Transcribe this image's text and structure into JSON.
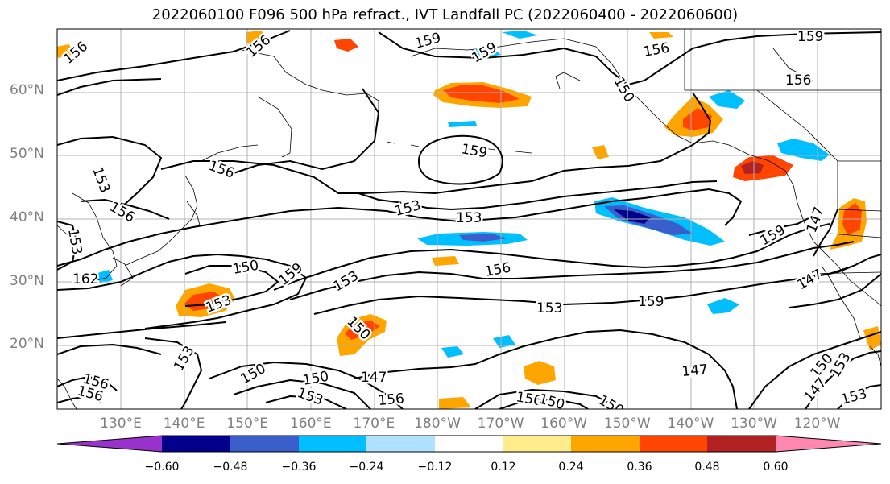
{
  "title": "2022060100 F096 500 hPa refract., IVT Landfall PC (2022060400 - 2022060600)",
  "lat_labels": [
    "60°N",
    "50°N",
    "40°N",
    "30°N",
    "20°N"
  ],
  "lon_labels": [
    "130°E",
    "140°E",
    "150°E",
    "160°E",
    "170°E",
    "180°W",
    "170°W",
    "160°W",
    "150°W",
    "140°W",
    "130°W",
    "120°W"
  ],
  "colorbar": {
    "ticks": [
      "−0.60",
      "−0.48",
      "−0.36",
      "−0.24",
      "−0.12",
      "0.12",
      "0.24",
      "0.36",
      "0.48",
      "0.60"
    ],
    "colors": [
      "#9932cc",
      "#00008b",
      "#3a5fcd",
      "#00bfff",
      "#b0e2ff",
      "#ffffff",
      "#ffec8b",
      "#ffa500",
      "#ff4500",
      "#b22222",
      "#ff88b0"
    ]
  },
  "contour_labels": [
    "156",
    "156",
    "159",
    "159",
    "159",
    "156",
    "156",
    "150",
    "159",
    "156",
    "153",
    "156",
    "153",
    "153",
    "153",
    "150",
    "153",
    "162",
    "159",
    "153",
    "156",
    "150",
    "153",
    "159",
    "159",
    "147",
    "150",
    "150",
    "147",
    "150",
    "147",
    "153",
    "156",
    "156",
    "153",
    "156",
    "156",
    "150",
    "147",
    "150",
    "153",
    "153",
    "147"
  ]
}
